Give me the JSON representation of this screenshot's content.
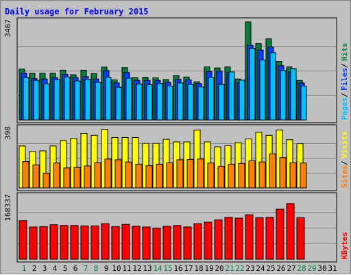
{
  "chart_data": {
    "type": "bar",
    "title": "Daily usage for February 2015",
    "days": [
      "1",
      "2",
      "3",
      "4",
      "5",
      "6",
      "7",
      "8",
      "9",
      "10",
      "11",
      "12",
      "13",
      "14",
      "15",
      "16",
      "17",
      "18",
      "19",
      "20",
      "21",
      "22",
      "23",
      "24",
      "25",
      "26",
      "27",
      "28",
      "29",
      "30",
      "31"
    ],
    "weekend_days": [
      "1",
      "7",
      "8",
      "14",
      "15",
      "21",
      "22",
      "28",
      "29"
    ],
    "has_data_days": 28,
    "panels": [
      {
        "id": "hits",
        "max_label": "3467",
        "ymax": 3467,
        "side_labels": [
          {
            "text": "Pages",
            "color": "#00c0ff"
          },
          {
            "text": "Files",
            "color": "#0040ff"
          },
          {
            "text": "Hits",
            "color": "#008040"
          }
        ],
        "series": [
          {
            "name": "Hits",
            "color": "#008040",
            "values": [
              1800,
              1650,
              1650,
              1650,
              1760,
              1600,
              1760,
              1640,
              1870,
              1420,
              1850,
              1500,
              1510,
              1490,
              1430,
              1570,
              1520,
              1350,
              1880,
              1840,
              1880,
              1450,
              3467,
              2700,
              2870,
              2070,
              1880,
              1400
            ]
          },
          {
            "name": "Files",
            "color": "#0040ff",
            "values": [
              1660,
              1460,
              1450,
              1500,
              1610,
              1500,
              1530,
              1450,
              1750,
              1310,
              1680,
              1400,
              1400,
              1400,
              1330,
              1440,
              1420,
              1290,
              1710,
              1730,
              1680,
              1330,
              2640,
              2470,
              2580,
              1920,
              1700,
              1310
            ]
          },
          {
            "name": "Pages",
            "color": "#00c0ff",
            "values": [
              1500,
              1400,
              1280,
              1430,
              1520,
              1380,
              1440,
              1330,
              1510,
              1160,
              1480,
              1270,
              1250,
              1290,
              1200,
              1310,
              1260,
              1170,
              1510,
              1260,
              1700,
              1410,
              2530,
              2120,
              2380,
              1750,
              1820,
              1200
            ]
          }
        ]
      },
      {
        "id": "visits",
        "max_label": "398",
        "ymax": 398,
        "side_labels": [
          {
            "text": "Sites",
            "color": "#ff8000"
          },
          {
            "text": "Visits",
            "color": "#ffff00"
          }
        ],
        "series": [
          {
            "name": "Visits",
            "color": "#ffff00",
            "values": [
              283,
              245,
              250,
              283,
              320,
              335,
              368,
              355,
              395,
              340,
              340,
              340,
              300,
              300,
              328,
              310,
              310,
              390,
              310,
              277,
              285,
              305,
              330,
              375,
              355,
              390,
              325,
              298
            ]
          },
          {
            "name": "Sites",
            "color": "#ff8000",
            "values": [
              178,
              155,
              100,
              168,
              135,
              138,
              148,
              170,
              195,
              190,
              175,
              160,
              150,
              160,
              170,
              190,
              192,
              195,
              168,
              145,
              160,
              165,
              183,
              175,
              230,
              205,
              170,
              168
            ]
          }
        ]
      },
      {
        "id": "kbytes",
        "max_label": "168337",
        "ymax": 168337,
        "side_labels": [
          {
            "text": "KBytes",
            "color": "#ff0000"
          }
        ],
        "series": [
          {
            "name": "KBytes",
            "color": "#ff0000",
            "values": [
              104000,
              87000,
              88000,
              93000,
              91000,
              91000,
              90000,
              90000,
              96000,
              88000,
              94000,
              89000,
              87000,
              84000,
              89000,
              91000,
              87000,
              96000,
              100000,
              106000,
              113000,
              111000,
              120000,
              112000,
              113000,
              135000,
              150000,
              112000
            ]
          }
        ]
      }
    ]
  }
}
